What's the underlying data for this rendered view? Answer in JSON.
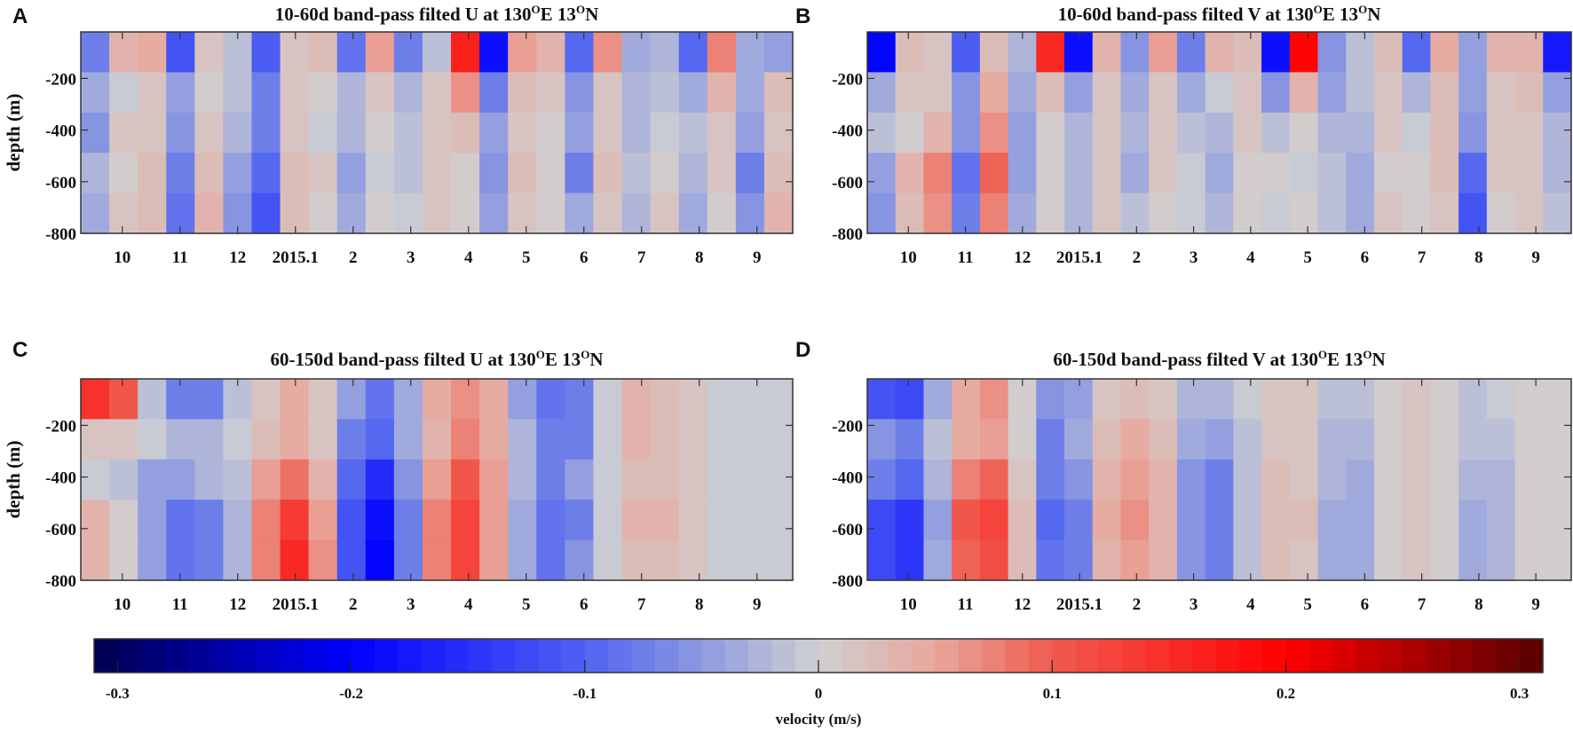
{
  "chart_data": [
    {
      "panel": "A",
      "type": "heatmap",
      "title": {
        "prefix": "10-60d band-pass filted U at 130",
        "deg1": "O",
        "mid": "E 13",
        "deg2": "O",
        "suffix": "N"
      },
      "ylabel": "depth (m)",
      "xlabel": "",
      "x_unit": "months since 2014-10-01",
      "xlim": [
        -0.72,
        11.62
      ],
      "ylim": [
        -800,
        -20
      ],
      "xticks": [
        0,
        1,
        2,
        3,
        4,
        5,
        6,
        7,
        8,
        9,
        10,
        11
      ],
      "xtick_labels": [
        "10",
        "11",
        "12",
        "2015.1",
        "2",
        "3",
        "4",
        "5",
        "6",
        "7",
        "8",
        "9"
      ],
      "yticks": [
        -200,
        -400,
        -600,
        -800
      ],
      "ytick_labels": [
        "-200",
        "-400",
        "-600",
        "-800"
      ],
      "depth_rows": [
        -98,
        -254,
        -410,
        -566,
        -722
      ],
      "values_by_time": [
        [
          -0.07,
          -0.04,
          -0.06,
          -0.03,
          -0.04
        ],
        [
          0.03,
          -0.01,
          0.01,
          0.0,
          0.01
        ],
        [
          0.04,
          0.01,
          0.01,
          0.02,
          0.02
        ],
        [
          -0.12,
          -0.05,
          -0.06,
          -0.08,
          -0.09
        ],
        [
          0.01,
          0.0,
          0.01,
          0.02,
          0.03
        ],
        [
          -0.02,
          -0.02,
          -0.03,
          -0.05,
          -0.06
        ],
        [
          -0.11,
          -0.07,
          -0.07,
          -0.1,
          -0.12
        ],
        [
          0.01,
          0.01,
          0.01,
          0.02,
          0.02
        ],
        [
          0.02,
          0.0,
          -0.01,
          0.01,
          0.0
        ],
        [
          -0.09,
          -0.03,
          -0.03,
          -0.05,
          -0.04
        ],
        [
          0.05,
          0.01,
          0.0,
          -0.01,
          0.0
        ],
        [
          -0.07,
          -0.03,
          -0.02,
          -0.02,
          -0.01
        ],
        [
          -0.02,
          0.01,
          0.01,
          0.01,
          0.01
        ],
        [
          0.16,
          0.06,
          0.02,
          0.0,
          0.0
        ],
        [
          -0.19,
          -0.07,
          -0.05,
          -0.06,
          -0.05
        ],
        [
          0.05,
          0.02,
          0.01,
          0.02,
          0.01
        ],
        [
          0.03,
          0.01,
          0.0,
          0.0,
          0.0
        ],
        [
          -0.1,
          -0.06,
          -0.05,
          -0.07,
          -0.04
        ],
        [
          0.06,
          0.01,
          0.01,
          0.02,
          0.01
        ],
        [
          -0.04,
          -0.03,
          -0.03,
          -0.02,
          -0.03
        ],
        [
          -0.03,
          -0.02,
          -0.01,
          0.0,
          0.01
        ],
        [
          -0.1,
          -0.04,
          -0.02,
          -0.03,
          -0.04
        ],
        [
          0.07,
          0.03,
          0.01,
          0.01,
          0.0
        ],
        [
          -0.04,
          -0.04,
          -0.05,
          -0.07,
          -0.06
        ],
        [
          -0.05,
          0.02,
          0.01,
          0.02,
          0.03
        ]
      ]
    },
    {
      "panel": "B",
      "type": "heatmap",
      "title": {
        "prefix": "10-60d band-pass filted V at 130",
        "deg1": "O",
        "mid": "E 13",
        "deg2": "O",
        "suffix": "N"
      },
      "ylabel": "",
      "xlabel": "",
      "x_unit": "months since 2014-10-01",
      "xlim": [
        -0.72,
        11.62
      ],
      "ylim": [
        -800,
        -20
      ],
      "xticks": [
        0,
        1,
        2,
        3,
        4,
        5,
        6,
        7,
        8,
        9,
        10,
        11
      ],
      "xtick_labels": [
        "10",
        "11",
        "12",
        "2015.1",
        "2",
        "3",
        "4",
        "5",
        "6",
        "7",
        "8",
        "9"
      ],
      "yticks": [
        -200,
        -400,
        -600,
        -800
      ],
      "ytick_labels": [
        "-200",
        "-400",
        "-600",
        "-800"
      ],
      "depth_rows": [
        -98,
        -254,
        -410,
        -566,
        -722
      ],
      "values_by_time": [
        [
          -0.2,
          -0.04,
          -0.02,
          -0.05,
          -0.06
        ],
        [
          0.02,
          0.01,
          0.0,
          0.03,
          0.02
        ],
        [
          0.01,
          0.01,
          0.03,
          0.07,
          0.06
        ],
        [
          -0.11,
          -0.06,
          -0.06,
          -0.09,
          -0.08
        ],
        [
          0.02,
          0.04,
          0.06,
          0.09,
          0.07
        ],
        [
          -0.03,
          -0.04,
          -0.05,
          -0.05,
          -0.04
        ],
        [
          0.15,
          0.02,
          0.0,
          0.0,
          0.0
        ],
        [
          -0.19,
          -0.05,
          -0.03,
          -0.03,
          -0.03
        ],
        [
          0.03,
          0.01,
          0.01,
          0.01,
          0.01
        ],
        [
          -0.06,
          -0.04,
          -0.03,
          -0.04,
          -0.02
        ],
        [
          0.05,
          0.01,
          0.01,
          0.01,
          0.0
        ],
        [
          -0.08,
          -0.04,
          -0.02,
          -0.01,
          -0.01
        ],
        [
          0.03,
          -0.01,
          -0.03,
          -0.04,
          -0.03
        ],
        [
          0.02,
          0.01,
          0.01,
          0.0,
          0.0
        ],
        [
          -0.19,
          -0.06,
          -0.02,
          0.0,
          -0.01
        ],
        [
          0.19,
          0.03,
          0.0,
          -0.01,
          0.0
        ],
        [
          -0.06,
          -0.05,
          -0.03,
          -0.02,
          -0.02
        ],
        [
          -0.02,
          -0.02,
          -0.03,
          -0.04,
          -0.04
        ],
        [
          0.02,
          0.01,
          0.01,
          0.0,
          0.01
        ],
        [
          -0.1,
          -0.03,
          -0.01,
          0.0,
          0.0
        ],
        [
          0.04,
          0.02,
          0.02,
          0.02,
          0.01
        ],
        [
          -0.05,
          -0.05,
          -0.06,
          -0.1,
          -0.12
        ],
        [
          0.03,
          0.01,
          0.01,
          0.01,
          0.0
        ],
        [
          0.03,
          0.02,
          0.01,
          0.01,
          0.01
        ],
        [
          -0.18,
          -0.05,
          -0.03,
          -0.03,
          -0.02
        ]
      ]
    },
    {
      "panel": "C",
      "type": "heatmap",
      "title": {
        "prefix": "60-150d band-pass filted U at 130",
        "deg1": "O",
        "mid": "E 13",
        "deg2": "O",
        "suffix": "N"
      },
      "ylabel": "depth (m)",
      "xlabel": "",
      "x_unit": "months since 2014-10-01",
      "xlim": [
        -0.72,
        11.62
      ],
      "ylim": [
        -800,
        -20
      ],
      "xticks": [
        0,
        1,
        2,
        3,
        4,
        5,
        6,
        7,
        8,
        9,
        10,
        11
      ],
      "xtick_labels": [
        "10",
        "11",
        "12",
        "2015.1",
        "2",
        "3",
        "4",
        "5",
        "6",
        "7",
        "8",
        "9"
      ],
      "yticks": [
        -200,
        -400,
        -600,
        -800
      ],
      "ytick_labels": [
        "-200",
        "-400",
        "-600",
        "-800"
      ],
      "depth_rows": [
        -98,
        -254,
        -410,
        -566,
        -722
      ],
      "values_by_time": [
        [
          0.14,
          0.01,
          -0.01,
          0.03,
          0.03
        ],
        [
          0.1,
          0.01,
          -0.02,
          0.0,
          0.0
        ],
        [
          -0.02,
          -0.01,
          -0.05,
          -0.05,
          -0.05
        ],
        [
          -0.08,
          -0.03,
          -0.05,
          -0.09,
          -0.09
        ],
        [
          -0.08,
          -0.03,
          -0.03,
          -0.08,
          -0.08
        ],
        [
          -0.02,
          -0.01,
          -0.02,
          -0.03,
          -0.03
        ],
        [
          0.01,
          0.02,
          0.05,
          0.07,
          0.07
        ],
        [
          0.04,
          0.04,
          0.08,
          0.13,
          0.15
        ],
        [
          0.01,
          0.01,
          0.03,
          0.05,
          0.06
        ],
        [
          -0.05,
          -0.07,
          -0.1,
          -0.12,
          -0.12
        ],
        [
          -0.09,
          -0.1,
          -0.16,
          -0.19,
          -0.2
        ],
        [
          -0.04,
          -0.04,
          -0.06,
          -0.07,
          -0.07
        ],
        [
          0.04,
          0.03,
          0.05,
          0.07,
          0.07
        ],
        [
          0.06,
          0.07,
          0.1,
          0.12,
          0.12
        ],
        [
          0.04,
          0.04,
          0.05,
          0.05,
          0.05
        ],
        [
          -0.05,
          -0.03,
          -0.03,
          -0.04,
          -0.04
        ],
        [
          -0.09,
          -0.07,
          -0.07,
          -0.09,
          -0.09
        ],
        [
          -0.08,
          -0.08,
          -0.05,
          -0.07,
          -0.06
        ],
        [
          -0.01,
          -0.01,
          -0.01,
          -0.01,
          -0.01
        ],
        [
          0.03,
          0.03,
          0.02,
          0.03,
          0.02
        ],
        [
          0.02,
          0.02,
          0.02,
          0.03,
          0.02
        ],
        [
          0.01,
          0.01,
          0.01,
          0.01,
          0.01
        ],
        [
          -0.01,
          -0.01,
          -0.01,
          -0.01,
          -0.01
        ],
        [
          -0.01,
          -0.01,
          -0.01,
          -0.01,
          -0.01
        ],
        [
          -0.01,
          -0.01,
          -0.01,
          -0.01,
          -0.01
        ]
      ]
    },
    {
      "panel": "D",
      "type": "heatmap",
      "title": {
        "prefix": "60-150d band-pass filted V at 130",
        "deg1": "O",
        "mid": "E 13",
        "deg2": "O",
        "suffix": "N"
      },
      "ylabel": "",
      "xlabel": "",
      "x_unit": "months since 2014-10-01",
      "xlim": [
        -0.72,
        11.62
      ],
      "ylim": [
        -800,
        -20
      ],
      "xticks": [
        0,
        1,
        2,
        3,
        4,
        5,
        6,
        7,
        8,
        9,
        10,
        11
      ],
      "xtick_labels": [
        "10",
        "11",
        "12",
        "2015.1",
        "2",
        "3",
        "4",
        "5",
        "6",
        "7",
        "8",
        "9"
      ],
      "yticks": [
        -200,
        -400,
        -600,
        -800
      ],
      "ytick_labels": [
        "-200",
        "-400",
        "-600",
        "-800"
      ],
      "depth_rows": [
        -98,
        -254,
        -410,
        -566,
        -722
      ],
      "values_by_time": [
        [
          -0.12,
          -0.06,
          -0.08,
          -0.13,
          -0.13
        ],
        [
          -0.13,
          -0.07,
          -0.1,
          -0.15,
          -0.15
        ],
        [
          -0.04,
          -0.02,
          -0.03,
          -0.05,
          -0.04
        ],
        [
          0.04,
          0.04,
          0.07,
          0.1,
          0.09
        ],
        [
          0.06,
          0.05,
          0.09,
          0.12,
          0.11
        ],
        [
          0.0,
          0.0,
          0.01,
          0.02,
          0.02
        ],
        [
          -0.06,
          -0.07,
          -0.08,
          -0.1,
          -0.09
        ],
        [
          -0.05,
          -0.04,
          -0.06,
          -0.07,
          -0.07
        ],
        [
          0.01,
          0.02,
          0.03,
          0.04,
          0.03
        ],
        [
          0.02,
          0.04,
          0.05,
          0.06,
          0.05
        ],
        [
          0.01,
          0.02,
          0.03,
          0.03,
          0.03
        ],
        [
          -0.03,
          -0.04,
          -0.06,
          -0.06,
          -0.06
        ],
        [
          -0.03,
          -0.05,
          -0.07,
          -0.07,
          -0.07
        ],
        [
          -0.01,
          -0.02,
          -0.02,
          -0.02,
          -0.02
        ],
        [
          0.01,
          0.01,
          0.02,
          0.02,
          0.02
        ],
        [
          0.01,
          0.01,
          0.01,
          0.02,
          0.01
        ],
        [
          -0.02,
          -0.03,
          -0.03,
          -0.04,
          -0.04
        ],
        [
          -0.02,
          -0.03,
          -0.04,
          -0.04,
          -0.04
        ],
        [
          0.0,
          0.0,
          0.0,
          0.0,
          0.0
        ],
        [
          0.01,
          0.01,
          0.01,
          0.01,
          0.01
        ],
        [
          0.0,
          0.0,
          0.0,
          0.0,
          0.0
        ],
        [
          -0.02,
          -0.02,
          -0.03,
          -0.04,
          -0.04
        ],
        [
          -0.01,
          -0.02,
          -0.03,
          -0.03,
          -0.03
        ],
        [
          0.0,
          0.0,
          0.0,
          0.0,
          0.0
        ],
        [
          0.0,
          0.0,
          0.0,
          0.0,
          0.0
        ]
      ]
    }
  ],
  "colorbar": {
    "label": "velocity (m/s)",
    "range": [
      -0.31,
      0.31
    ],
    "step": 0.01,
    "ticks": [
      -0.3,
      -0.2,
      -0.1,
      0,
      0.1,
      0.2,
      0.3
    ],
    "tick_labels": [
      "-0.3",
      "-0.2",
      "-0.1",
      "0",
      "0.1",
      "0.2",
      "0.3"
    ],
    "colormap": [
      {
        "v": -0.31,
        "c": "#00004f"
      },
      {
        "v": -0.2,
        "c": "#0000ff"
      },
      {
        "v": -0.1,
        "c": "#4f62f2"
      },
      {
        "v": -0.05,
        "c": "#8d9ae0"
      },
      {
        "v": 0.0,
        "c": "#cfd0d2"
      },
      {
        "v": 0.05,
        "c": "#e8a79c"
      },
      {
        "v": 0.1,
        "c": "#f05a4e"
      },
      {
        "v": 0.2,
        "c": "#ff0000"
      },
      {
        "v": 0.31,
        "c": "#560000"
      }
    ]
  }
}
